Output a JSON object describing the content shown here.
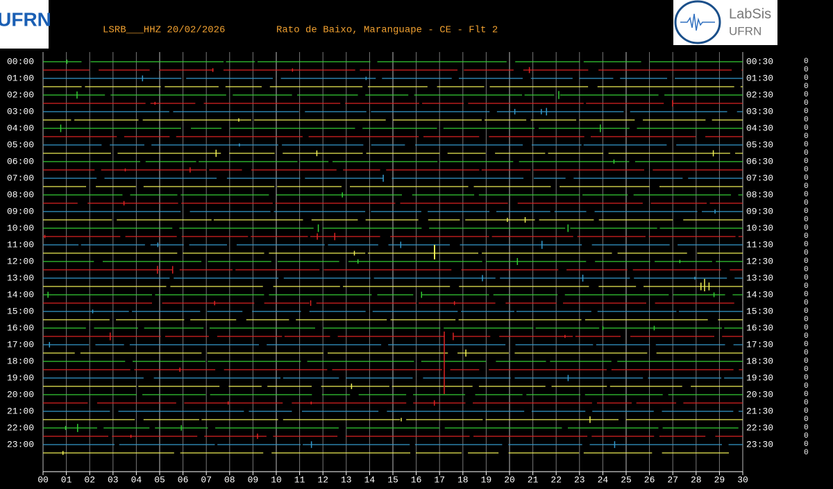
{
  "header": {
    "station": "LSRB___HHZ 20/02/2026",
    "location": "Rato de Baixo, Maranguape - CE - Flt 2"
  },
  "logos": {
    "left": "UFRN",
    "right_title": "LabSis",
    "right_subtitle": "UFRN"
  },
  "left_labels": [
    "00:00",
    "01:00",
    "02:00",
    "03:00",
    "04:00",
    "05:00",
    "06:00",
    "07:00",
    "08:00",
    "09:00",
    "10:00",
    "11:00",
    "12:00",
    "13:00",
    "14:00",
    "15:00",
    "16:00",
    "17:00",
    "18:00",
    "19:00",
    "20:00",
    "21:00",
    "22:00",
    "23:00"
  ],
  "right_labels": [
    "00:30",
    "01:30",
    "02:30",
    "03:30",
    "04:30",
    "05:30",
    "06:30",
    "07:30",
    "08:30",
    "09:30",
    "10:30",
    "11:30",
    "12:30",
    "13:30",
    "14:30",
    "15:30",
    "16:30",
    "17:30",
    "18:30",
    "19:30",
    "20:30",
    "21:30",
    "22:30",
    "23:30"
  ],
  "x_labels": [
    "00",
    "01",
    "02",
    "03",
    "04",
    "05",
    "06",
    "07",
    "08",
    "09",
    "10",
    "11",
    "12",
    "13",
    "14",
    "15",
    "16",
    "17",
    "18",
    "19",
    "20",
    "21",
    "22",
    "23",
    "24",
    "25",
    "26",
    "27",
    "28",
    "29",
    "30"
  ],
  "row_values": [
    "0",
    "0",
    "0",
    "0",
    "0",
    "0",
    "0",
    "0",
    "0",
    "0",
    "0",
    "0",
    "0",
    "0",
    "0",
    "0",
    "0",
    "0",
    "0",
    "0",
    "0",
    "0",
    "0",
    "0",
    "0",
    "0",
    "0",
    "0",
    "0",
    "0",
    "0",
    "0",
    "0",
    "0",
    "0",
    "0",
    "0",
    "0",
    "0",
    "0",
    "0",
    "0",
    "0",
    "0",
    "0",
    "0",
    "0",
    "0"
  ]
}
